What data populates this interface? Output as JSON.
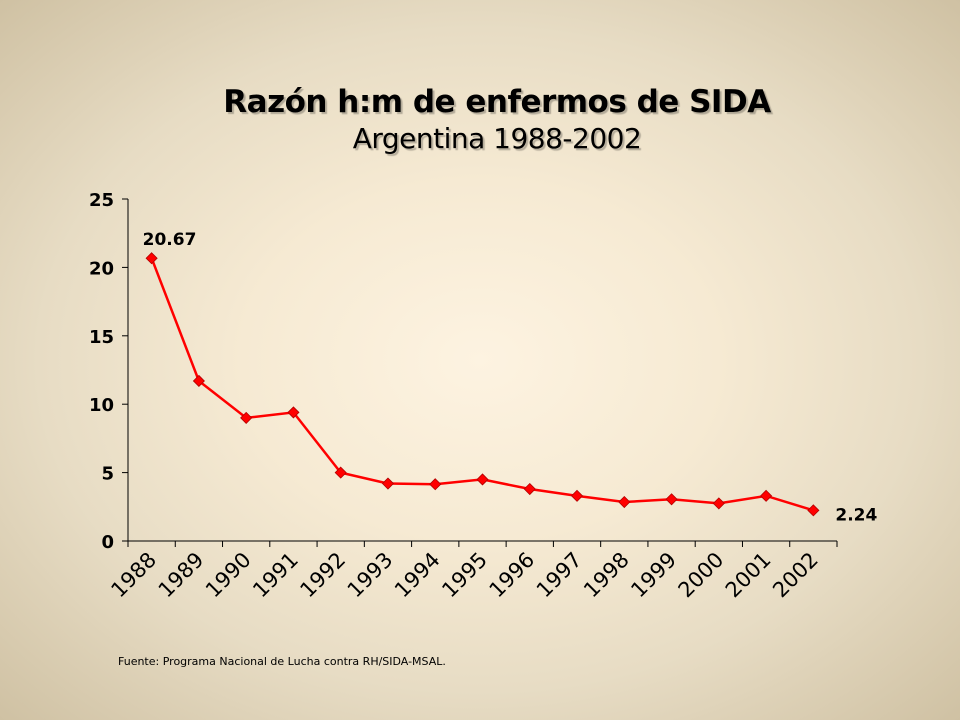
{
  "chart_data": {
    "type": "line",
    "title": "Razón h:m de enfermos de SIDA",
    "subtitle": "Argentina 1988-2002",
    "categories": [
      "1988",
      "1989",
      "1990",
      "1991",
      "1992",
      "1993",
      "1994",
      "1995",
      "1996",
      "1997",
      "1998",
      "1999",
      "2000",
      "2001",
      "2002"
    ],
    "values": [
      20.67,
      11.7,
      9.0,
      9.4,
      5.0,
      4.2,
      4.15,
      4.5,
      3.8,
      3.3,
      2.85,
      3.05,
      2.75,
      3.3,
      2.24
    ],
    "data_labels": [
      {
        "category": "1988",
        "text": "20.67"
      },
      {
        "category": "2002",
        "text": "2.24"
      }
    ],
    "yticks": [
      "0",
      "5",
      "10",
      "15",
      "20",
      "25"
    ],
    "ylim": [
      0,
      25
    ],
    "xlabel": "",
    "ylabel": "",
    "grid": false,
    "line_color": "#ff0000",
    "marker_color": "#ff0000"
  },
  "source": "Fuente: Programa Nacional de Lucha contra RH/SIDA-MSAL."
}
